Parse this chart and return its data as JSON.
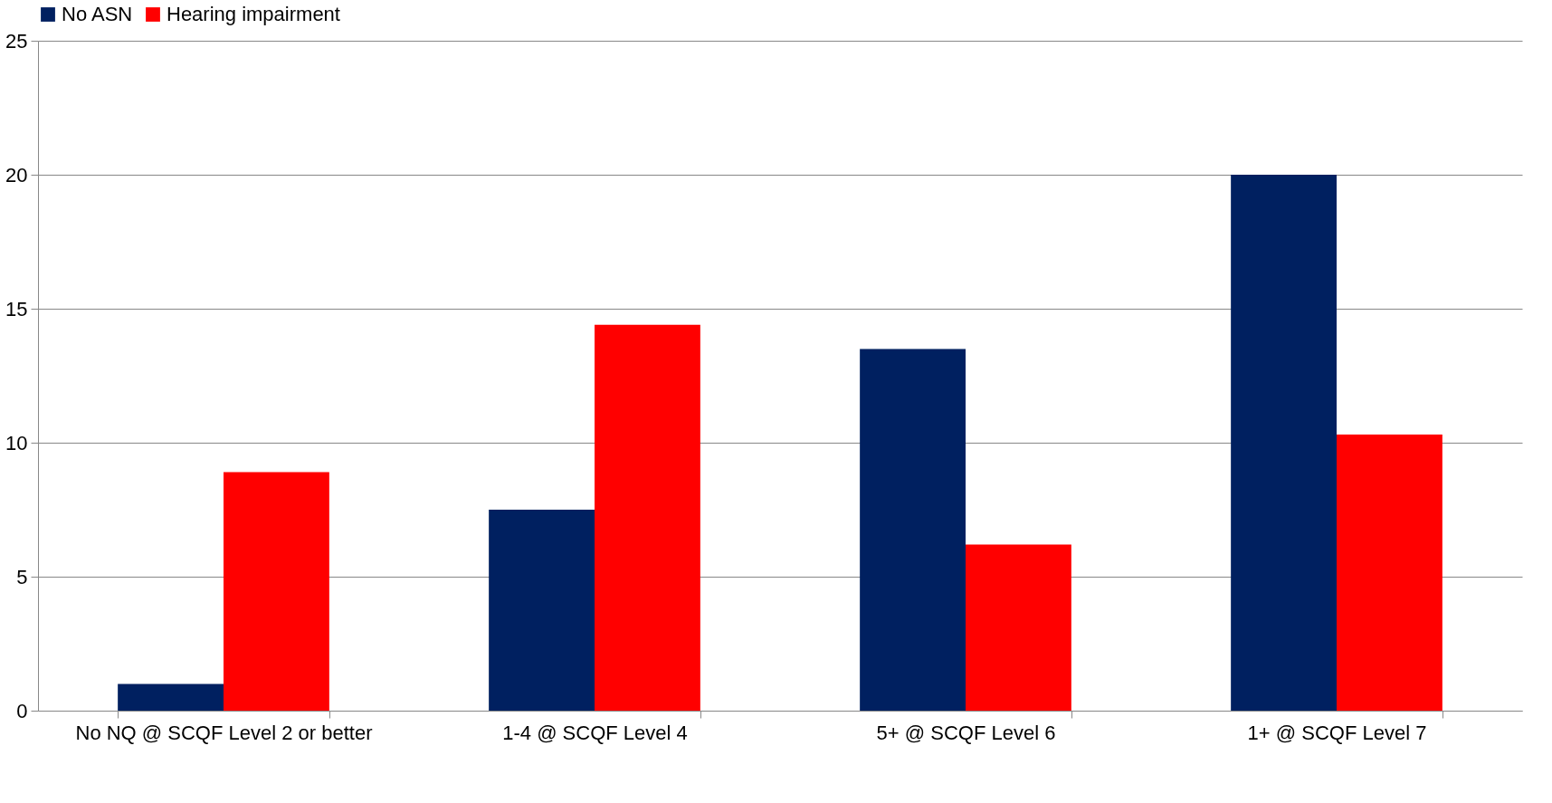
{
  "chart_data": {
    "type": "bar",
    "categories": [
      "No NQ @  SCQF Level 2 or better",
      "1-4 @ SCQF Level 4",
      "5+ @ SCQF Level 6",
      "1+ @ SCQF Level 7"
    ],
    "series": [
      {
        "name": "No ASN",
        "color": "#002060",
        "values": [
          1.0,
          7.5,
          13.5,
          20.0
        ]
      },
      {
        "name": "Hearing impairment",
        "color": "#ff0000",
        "values": [
          8.9,
          14.4,
          6.2,
          10.3
        ]
      }
    ],
    "ylim": [
      0,
      25
    ],
    "yticks": [
      0,
      5,
      10,
      15,
      20,
      25
    ],
    "grid": "y",
    "legend": "top"
  }
}
